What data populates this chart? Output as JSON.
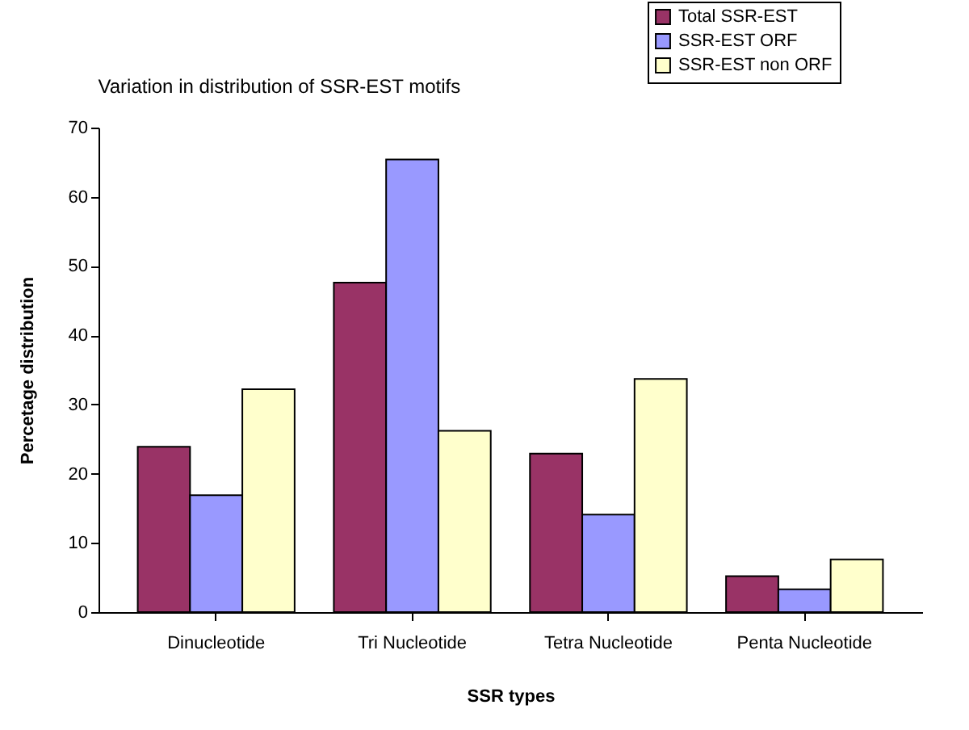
{
  "chart_data": {
    "type": "bar",
    "title": "Variation in distribution of SSR-EST motifs",
    "xlabel": "SSR types",
    "ylabel": "Percetage distribution",
    "categories": [
      "Dinucleotide",
      "Tri Nucleotide",
      "Tetra Nucleotide",
      "Penta Nucleotide"
    ],
    "series": [
      {
        "name": "Total SSR-EST",
        "color": "#993366",
        "values": [
          23.9,
          47.6,
          22.9,
          5.2
        ]
      },
      {
        "name": "SSR-EST ORF",
        "color": "#9999ff",
        "values": [
          16.9,
          65.4,
          14.1,
          3.3
        ]
      },
      {
        "name": "SSR-EST non ORF",
        "color": "#ffffcc",
        "values": [
          32.2,
          26.2,
          33.7,
          7.6
        ]
      }
    ],
    "ylim": [
      0,
      70
    ],
    "yticks": [
      0,
      10,
      20,
      30,
      40,
      50,
      60,
      70
    ],
    "grid": false,
    "legend": "top right"
  }
}
